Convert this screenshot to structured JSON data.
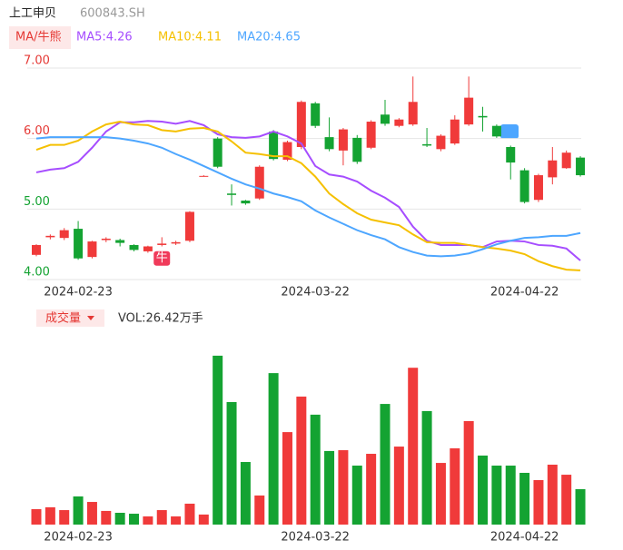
{
  "chart_data": [
    {
      "type": "candlestick",
      "title": "上工申贝",
      "subtitle": "600843.SH",
      "legend_label": "MA/牛熊",
      "categories": [
        null,
        null,
        null,
        "2024-02-23",
        null,
        null,
        null,
        null,
        null,
        null,
        null,
        null,
        null,
        null,
        null,
        null,
        null,
        null,
        null,
        null,
        "2024-03-22",
        null,
        null,
        null,
        null,
        null,
        null,
        null,
        null,
        null,
        null,
        null,
        null,
        null,
        null,
        "2024-04-22",
        null,
        null,
        null,
        null
      ],
      "open": [
        4.35,
        4.6,
        4.59,
        4.72,
        4.32,
        4.56,
        4.56,
        4.49,
        4.4,
        4.49,
        4.51,
        4.55,
        5.47,
        6.0,
        5.22,
        5.12,
        5.15,
        6.1,
        5.7,
        5.88,
        6.5,
        6.02,
        5.83,
        6.01,
        5.87,
        6.34,
        6.18,
        6.2,
        5.92,
        5.85,
        5.93,
        6.2,
        6.32,
        6.18,
        5.88,
        5.55,
        5.13,
        5.45,
        5.58,
        5.73
      ],
      "close": [
        4.49,
        4.62,
        4.7,
        4.3,
        4.54,
        4.58,
        4.52,
        4.42,
        4.47,
        4.51,
        4.53,
        4.96,
        5.47,
        5.6,
        5.2,
        5.08,
        5.6,
        5.71,
        5.95,
        6.52,
        6.18,
        5.85,
        6.13,
        5.67,
        6.24,
        6.21,
        6.27,
        6.52,
        5.9,
        6.04,
        6.27,
        6.58,
        6.3,
        6.03,
        5.66,
        5.1,
        5.48,
        5.69,
        5.8,
        5.48
      ],
      "high": [
        4.5,
        4.64,
        4.73,
        4.83,
        4.55,
        4.6,
        4.58,
        4.5,
        4.48,
        4.6,
        4.55,
        4.97,
        5.48,
        6.02,
        5.35,
        5.13,
        5.62,
        6.12,
        5.97,
        6.54,
        6.52,
        6.3,
        6.15,
        6.05,
        6.26,
        6.55,
        6.29,
        6.88,
        6.15,
        6.06,
        6.33,
        6.88,
        6.45,
        6.2,
        5.9,
        5.58,
        5.5,
        5.88,
        5.83,
        5.75
      ],
      "low": [
        4.33,
        4.57,
        4.56,
        4.28,
        4.3,
        4.53,
        4.47,
        4.4,
        4.38,
        4.47,
        4.49,
        4.53,
        5.46,
        5.58,
        5.05,
        5.06,
        5.13,
        5.69,
        5.68,
        5.85,
        6.15,
        5.82,
        5.62,
        5.64,
        5.85,
        6.18,
        6.16,
        6.18,
        5.88,
        5.82,
        5.91,
        6.18,
        6.1,
        6.01,
        5.42,
        5.08,
        5.1,
        5.35,
        5.57,
        5.46
      ],
      "up_color": "#f03a3a",
      "down_color": "#14a332",
      "series": [
        {
          "name": "MA5:4.26",
          "color": "#a64dff",
          "values": [
            5.52,
            5.56,
            5.58,
            5.67,
            5.87,
            6.1,
            6.23,
            6.23,
            6.25,
            6.24,
            6.21,
            6.25,
            6.19,
            6.06,
            6.02,
            6.01,
            6.03,
            6.1,
            6.03,
            5.93,
            5.61,
            5.49,
            5.46,
            5.39,
            5.26,
            5.16,
            5.03,
            4.75,
            4.55,
            4.49,
            4.49,
            4.49,
            4.46,
            4.54,
            4.55,
            4.54,
            4.49,
            4.48,
            4.44,
            4.27
          ]
        },
        {
          "name": "MA10:4.11",
          "color": "#f5c000",
          "values": [
            5.84,
            5.91,
            5.91,
            5.97,
            6.1,
            6.2,
            6.24,
            6.2,
            6.19,
            6.12,
            6.1,
            6.14,
            6.15,
            6.1,
            5.96,
            5.8,
            5.78,
            5.75,
            5.75,
            5.65,
            5.46,
            5.22,
            5.07,
            4.94,
            4.85,
            4.81,
            4.77,
            4.64,
            4.53,
            4.52,
            4.52,
            4.49,
            4.46,
            4.44,
            4.41,
            4.36,
            4.26,
            4.19,
            4.14,
            4.13
          ]
        },
        {
          "name": "MA20:4.65",
          "color": "#4da6ff",
          "values": [
            6.0,
            6.02,
            6.02,
            6.02,
            6.02,
            6.02,
            6.0,
            5.97,
            5.93,
            5.87,
            5.78,
            5.7,
            5.61,
            5.52,
            5.43,
            5.35,
            5.29,
            5.22,
            5.17,
            5.11,
            4.98,
            4.88,
            4.79,
            4.7,
            4.63,
            4.57,
            4.46,
            4.39,
            4.34,
            4.33,
            4.34,
            4.37,
            4.43,
            4.5,
            4.55,
            4.59,
            4.6,
            4.62,
            4.62,
            4.66
          ]
        }
      ],
      "ylim": [
        4,
        7
      ],
      "yticks": [
        {
          "value": 7,
          "label": "7.00"
        },
        {
          "value": 6,
          "label": "6.00"
        },
        {
          "value": 5,
          "label": "5.00"
        },
        {
          "value": 4,
          "label": "4.00"
        }
      ],
      "ytick_colors": [
        "#e53935",
        "#e53935",
        "#14a332",
        "#14a332"
      ],
      "grid": true,
      "annotations": [
        {
          "label": "牛",
          "index": 9,
          "value": 4.3
        }
      ]
    },
    {
      "type": "volume",
      "title": "成交量",
      "subtitle": "VOL:26.42万手",
      "categories": [
        null,
        null,
        null,
        "2024-02-23",
        null,
        null,
        null,
        null,
        null,
        null,
        null,
        null,
        null,
        null,
        null,
        null,
        null,
        null,
        null,
        null,
        "2024-03-22",
        null,
        null,
        null,
        null,
        null,
        null,
        null,
        null,
        null,
        null,
        null,
        null,
        null,
        null,
        "2024-04-22",
        null,
        null,
        null,
        null
      ],
      "values": [
        11.5,
        12.9,
        10.8,
        21,
        16.9,
        10.2,
        8.8,
        8.1,
        6.1,
        10.8,
        6.1,
        15.6,
        7.5,
        126,
        91.4,
        46.7,
        21.7,
        113,
        69,
        95.5,
        82,
        54.9,
        55.5,
        44,
        52.8,
        90,
        58.2,
        117,
        84.7,
        46,
        56.9,
        77.2,
        51.5,
        44,
        44,
        38.6,
        33.2,
        44.7,
        37.2,
        26.42
      ],
      "ylim": [
        0,
        130
      ]
    }
  ]
}
